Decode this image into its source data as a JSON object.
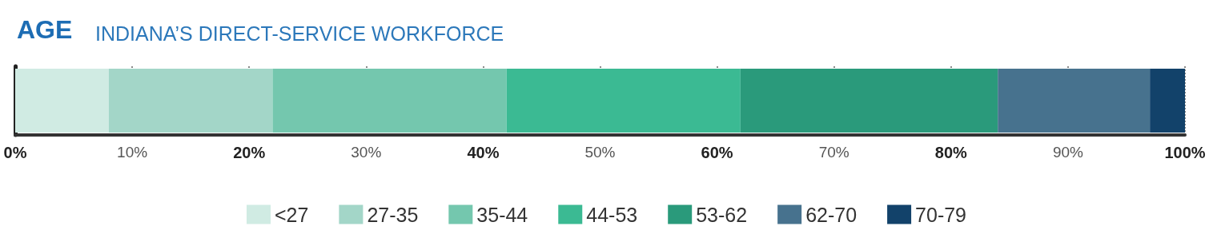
{
  "chart_data": {
    "type": "bar",
    "orientation": "horizontal",
    "stacked": true,
    "title": "AGE",
    "subtitle": "INDIANA’S DIRECT-SERVICE WORKFORCE",
    "categories": [
      null
    ],
    "series": [
      {
        "name": "<27",
        "color": "#d0ebe3",
        "values": [
          8
        ]
      },
      {
        "name": "27-35",
        "color": "#a3d6c8",
        "values": [
          14
        ]
      },
      {
        "name": "35-44",
        "color": "#74c7ae",
        "values": [
          20
        ]
      },
      {
        "name": "44-53",
        "color": "#3bba93",
        "values": [
          20
        ]
      },
      {
        "name": "53-62",
        "color": "#2a9a7b",
        "values": [
          22
        ]
      },
      {
        "name": "62-70",
        "color": "#47728e",
        "values": [
          13
        ]
      },
      {
        "name": "70-79",
        "color": "#12426a",
        "values": [
          3
        ]
      }
    ],
    "xlim": [
      0,
      100
    ],
    "xticks": [
      {
        "value": 0,
        "label": "0%"
      },
      {
        "value": 10,
        "label": "10%"
      },
      {
        "value": 20,
        "label": "20%"
      },
      {
        "value": 30,
        "label": "30%"
      },
      {
        "value": 40,
        "label": "40%"
      },
      {
        "value": 50,
        "label": "50%"
      },
      {
        "value": 60,
        "label": "60%"
      },
      {
        "value": 70,
        "label": "70%"
      },
      {
        "value": 80,
        "label": "80%"
      },
      {
        "value": 90,
        "label": "90%"
      },
      {
        "value": 100,
        "label": "100%"
      }
    ],
    "grid": "x",
    "legend": "bottom"
  }
}
